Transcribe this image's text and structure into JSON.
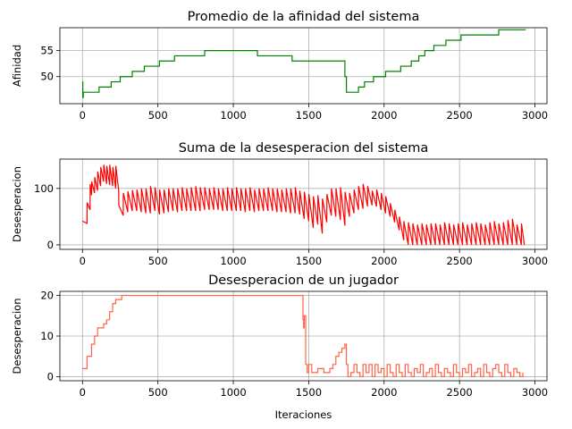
{
  "chart_data": [
    {
      "type": "line",
      "title": "Promedio de la afinidad del sistema",
      "xlabel": "",
      "ylabel": "Afinidad",
      "xlim": [
        -150,
        3080
      ],
      "ylim": [
        44.8,
        59.4
      ],
      "xticks": [
        0,
        500,
        1000,
        1500,
        2000,
        2500,
        3000
      ],
      "yticks": [
        50,
        55
      ],
      "grid": true,
      "series": [
        {
          "color": "#008000",
          "step": true,
          "x": [
            0,
            2,
            5,
            10,
            100,
            110,
            180,
            190,
            240,
            250,
            320,
            330,
            400,
            410,
            500,
            510,
            600,
            610,
            700,
            710,
            800,
            810,
            870,
            880,
            1000,
            1010,
            1150,
            1160,
            1380,
            1390,
            1500,
            1510,
            1700,
            1740,
            1750,
            1760,
            1820,
            1830,
            1860,
            1870,
            1920,
            1930,
            2000,
            2010,
            2100,
            2110,
            2170,
            2180,
            2220,
            2230,
            2260,
            2270,
            2320,
            2330,
            2400,
            2410,
            2500,
            2510,
            2550,
            2560,
            2650,
            2660,
            2750,
            2760,
            2940
          ],
          "y": [
            49,
            46,
            47,
            47,
            47,
            48,
            48,
            49,
            49,
            50,
            50,
            51,
            51,
            52,
            52,
            53,
            53,
            54,
            54,
            54,
            54,
            55,
            55,
            55,
            55,
            55,
            55,
            54,
            54,
            53,
            53,
            53,
            53,
            50,
            47,
            47,
            47,
            48,
            48,
            49,
            49,
            50,
            50,
            51,
            51,
            52,
            52,
            53,
            53,
            54,
            54,
            55,
            55,
            56,
            56,
            57,
            57,
            58,
            58,
            58,
            58,
            58,
            58,
            59,
            59
          ]
        }
      ]
    },
    {
      "type": "line",
      "title": "Suma de la desesperacion del sistema",
      "xlabel": "",
      "ylabel": "Desesperacion",
      "xlim": [
        -150,
        3080
      ],
      "ylim": [
        -8,
        152
      ],
      "xticks": [
        0,
        500,
        1000,
        1500,
        2000,
        2500,
        3000
      ],
      "yticks": [
        0,
        100
      ],
      "grid": true,
      "series": [
        {
          "color": "#ff0000",
          "x": [
            0,
            30,
            31,
            50,
            51,
            60,
            61,
            80,
            81,
            100,
            101,
            120,
            121,
            140,
            141,
            160,
            161,
            180,
            181,
            200,
            201,
            220,
            221,
            240,
            241,
            270,
            271,
            300,
            301,
            330,
            331,
            360,
            361,
            390,
            391,
            420,
            421,
            450,
            451,
            480,
            481,
            510,
            511,
            540,
            541,
            570,
            571,
            600,
            601,
            630,
            631,
            660,
            661,
            690,
            691,
            720,
            721,
            750,
            751,
            780,
            781,
            810,
            811,
            840,
            841,
            870,
            871,
            900,
            901,
            930,
            931,
            960,
            961,
            990,
            991,
            1020,
            1021,
            1050,
            1051,
            1080,
            1081,
            1110,
            1111,
            1140,
            1141,
            1170,
            1171,
            1200,
            1201,
            1230,
            1231,
            1260,
            1261,
            1290,
            1291,
            1320,
            1321,
            1350,
            1351,
            1380,
            1381,
            1410,
            1411,
            1440,
            1441,
            1470,
            1471,
            1500,
            1501,
            1530,
            1531,
            1560,
            1561,
            1590,
            1591,
            1620,
            1621,
            1650,
            1651,
            1680,
            1681,
            1710,
            1711,
            1740,
            1741,
            1770,
            1771,
            1800,
            1801,
            1830,
            1831,
            1860,
            1861,
            1890,
            1891,
            1920,
            1921,
            1950,
            1951,
            1980,
            1981,
            2010,
            2011,
            2040,
            2041,
            2070,
            2071,
            2100,
            2101,
            2130,
            2131,
            2160,
            2161,
            2190,
            2191,
            2220,
            2221,
            2250,
            2251,
            2280,
            2281,
            2310,
            2311,
            2340,
            2341,
            2370,
            2371,
            2400,
            2401,
            2430,
            2431,
            2460,
            2461,
            2490,
            2491,
            2520,
            2521,
            2550,
            2551,
            2580,
            2581,
            2610,
            2611,
            2640,
            2641,
            2670,
            2671,
            2700,
            2701,
            2730,
            2731,
            2760,
            2761,
            2790,
            2791,
            2820,
            2821,
            2850,
            2851,
            2880,
            2881,
            2910,
            2911,
            2930
          ],
          "y": [
            42,
            38,
            75,
            62,
            108,
            88,
            112,
            92,
            120,
            96,
            130,
            104,
            138,
            112,
            142,
            108,
            140,
            106,
            142,
            104,
            138,
            100,
            140,
            96,
            70,
            52,
            92,
            58,
            95,
            60,
            97,
            60,
            98,
            58,
            100,
            56,
            100,
            56,
            104,
            60,
            102,
            54,
            98,
            56,
            98,
            58,
            100,
            60,
            100,
            58,
            100,
            60,
            102,
            60,
            100,
            60,
            102,
            60,
            104,
            60,
            102,
            62,
            102,
            62,
            100,
            62,
            102,
            62,
            100,
            60,
            100,
            60,
            102,
            60,
            100,
            60,
            102,
            60,
            100,
            58,
            100,
            60,
            102,
            58,
            98,
            60,
            100,
            60,
            100,
            60,
            102,
            60,
            100,
            58,
            100,
            58,
            98,
            58,
            100,
            56,
            100,
            56,
            102,
            54,
            96,
            46,
            94,
            42,
            90,
            30,
            86,
            36,
            88,
            20,
            82,
            40,
            90,
            52,
            100,
            50,
            100,
            44,
            102,
            34,
            94,
            50,
            92,
            56,
            98,
            62,
            104,
            64,
            108,
            68,
            104,
            70,
            96,
            68,
            98,
            62,
            92,
            56,
            86,
            50,
            74,
            40,
            62,
            26,
            50,
            8,
            42,
            0,
            40,
            0,
            38,
            0,
            36,
            0,
            38,
            0,
            36,
            0,
            38,
            0,
            38,
            0,
            36,
            0,
            40,
            0,
            38,
            0,
            36,
            0,
            38,
            0,
            40,
            0,
            36,
            0,
            38,
            0,
            40,
            0,
            38,
            0,
            36,
            0,
            40,
            0,
            42,
            0,
            38,
            0,
            40,
            0,
            44,
            0,
            46,
            0,
            36,
            0,
            38,
            0
          ]
        }
      ]
    },
    {
      "type": "line",
      "title": "Desesperacion de un jugador",
      "xlabel": "Iteraciones",
      "ylabel": "Desesperacion",
      "xlim": [
        -150,
        3080
      ],
      "ylim": [
        -1,
        21
      ],
      "xticks": [
        0,
        500,
        1000,
        1500,
        2000,
        2500,
        3000
      ],
      "yticks": [
        0,
        10,
        20
      ],
      "grid": true,
      "series": [
        {
          "color": "#ff6347",
          "step": true,
          "x": [
            0,
            15,
            30,
            45,
            60,
            80,
            100,
            120,
            140,
            160,
            180,
            200,
            220,
            240,
            260,
            280,
            1460,
            1462,
            1466,
            1470,
            1480,
            1490,
            1500,
            1520,
            1560,
            1600,
            1640,
            1660,
            1680,
            1700,
            1720,
            1740,
            1750,
            1760,
            1780,
            1800,
            1820,
            1840,
            1860,
            1880,
            1900,
            1920,
            1940,
            1960,
            1980,
            2000,
            2020,
            2040,
            2060,
            2080,
            2100,
            2120,
            2140,
            2160,
            2180,
            2200,
            2220,
            2240,
            2260,
            2280,
            2300,
            2320,
            2340,
            2360,
            2380,
            2400,
            2420,
            2440,
            2460,
            2480,
            2500,
            2520,
            2540,
            2560,
            2580,
            2600,
            2620,
            2640,
            2660,
            2680,
            2700,
            2720,
            2740,
            2760,
            2780,
            2800,
            2820,
            2840,
            2860,
            2880,
            2900,
            2920
          ],
          "y": [
            2,
            2,
            5,
            5,
            8,
            10,
            12,
            12,
            13,
            14,
            16,
            18,
            19,
            19,
            20,
            20,
            20,
            14,
            12,
            15,
            3,
            1,
            3,
            1,
            2,
            1,
            2,
            3,
            5,
            6,
            7,
            8,
            3,
            0,
            1,
            3,
            1,
            0,
            3,
            1,
            3,
            0,
            3,
            1,
            2,
            0,
            3,
            1,
            0,
            3,
            1,
            0,
            3,
            1,
            0,
            2,
            1,
            3,
            0,
            1,
            2,
            0,
            3,
            1,
            0,
            2,
            1,
            0,
            3,
            1,
            0,
            2,
            1,
            3,
            0,
            1,
            2,
            0,
            3,
            1,
            0,
            2,
            3,
            1,
            0,
            3,
            1,
            0,
            2,
            1,
            0,
            1
          ]
        }
      ]
    }
  ]
}
